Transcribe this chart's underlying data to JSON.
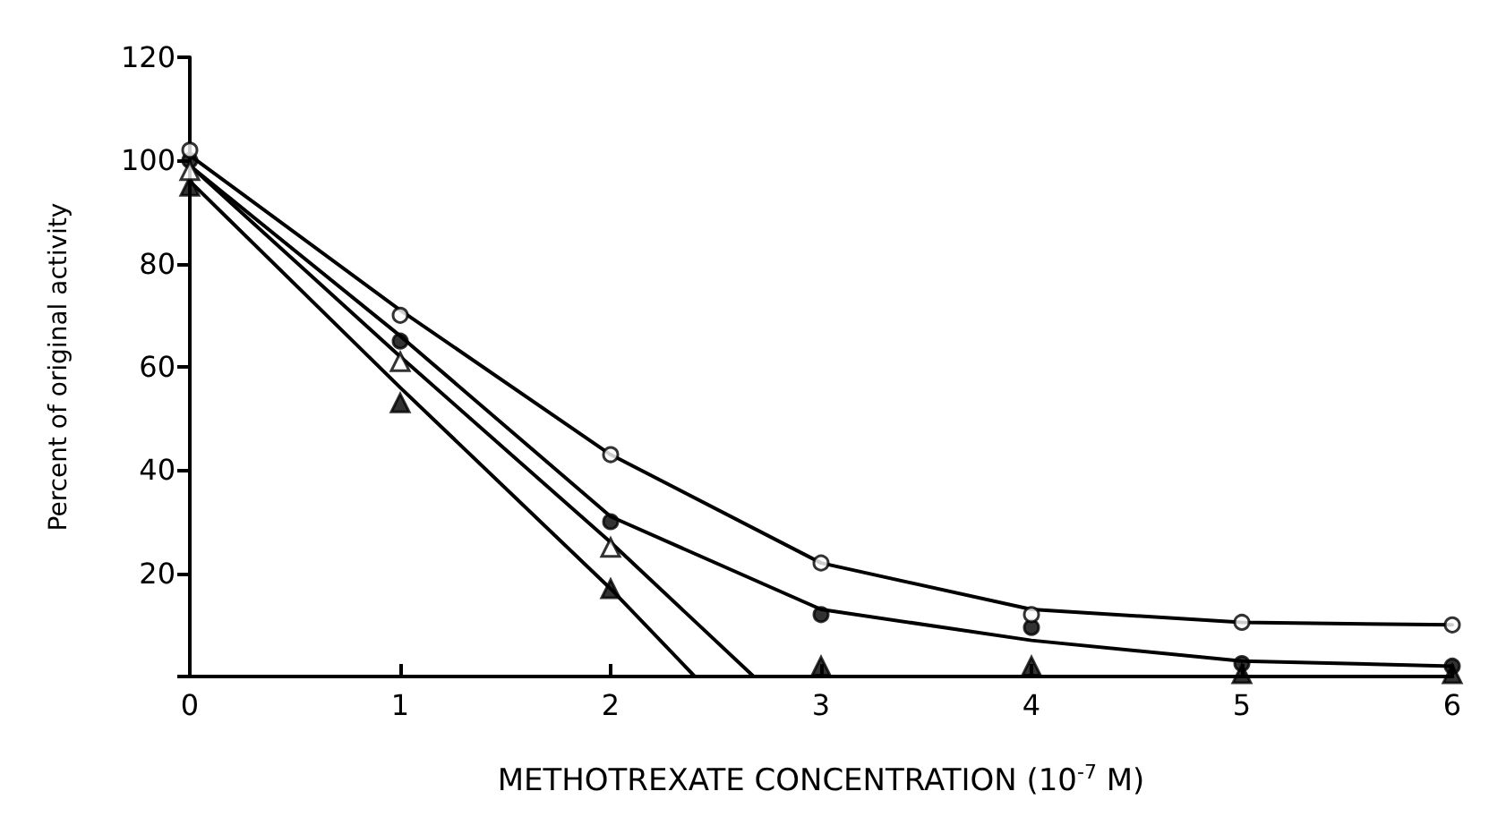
{
  "chart_data": {
    "type": "scatter",
    "xlabel": "METHOTREXATE CONCENTRATION (10$^{-7}$ M)",
    "ylabel": "Percent of original activity",
    "xlim": [
      0,
      6
    ],
    "xticks": [
      0,
      1,
      2,
      3,
      4,
      5,
      6
    ],
    "ylim": [
      0,
      120
    ],
    "yticks": [
      {
        "value": 0,
        "label": null
      },
      20,
      40,
      60,
      80,
      100,
      120
    ],
    "grid": false,
    "series": [
      {
        "color": "#000000",
        "marker": "circle",
        "x": [
          0,
          1,
          2,
          3,
          4,
          5,
          6
        ],
        "values": [
          100,
          65,
          30,
          12,
          9.5,
          2.5,
          2
        ]
      },
      {
        "color": "#000000",
        "marker": "triangle",
        "x": [
          0,
          1,
          2,
          3,
          4,
          5,
          6
        ],
        "values": [
          95,
          53,
          17,
          2,
          2,
          0.5,
          0.5
        ]
      },
      {
        "color": "#ffffff",
        "marker": "circle",
        "x": [
          0,
          1,
          2,
          3,
          4,
          5,
          6
        ],
        "values": [
          102,
          70,
          43,
          22,
          12,
          10.5,
          10
        ]
      },
      {
        "color": "#ffffff",
        "marker": "triangle",
        "x": [
          0,
          1,
          2
        ],
        "values": [
          98,
          61,
          25
        ]
      },
      {
        "type": "line",
        "color": "#000000",
        "marker": "none",
        "x": [
          0,
          1,
          2,
          3,
          4,
          5,
          6
        ],
        "values": [
          101,
          71,
          43,
          22,
          13,
          10.5,
          10
        ]
      },
      {
        "type": "line",
        "color": "#000000",
        "marker": "none",
        "x": [
          0,
          1,
          2,
          3,
          4,
          5,
          6
        ],
        "values": [
          99,
          66,
          31,
          13,
          7,
          3,
          2
        ]
      },
      {
        "type": "line",
        "color": "#000000",
        "marker": "none",
        "x": [
          0,
          1,
          2,
          2.68,
          6
        ],
        "values": [
          99,
          62,
          26,
          0,
          0
        ]
      },
      {
        "type": "line",
        "color": "#000000",
        "marker": "none",
        "x": [
          0,
          1,
          2,
          2.4,
          6
        ],
        "values": [
          96,
          56,
          17,
          0,
          0
        ]
      }
    ]
  }
}
